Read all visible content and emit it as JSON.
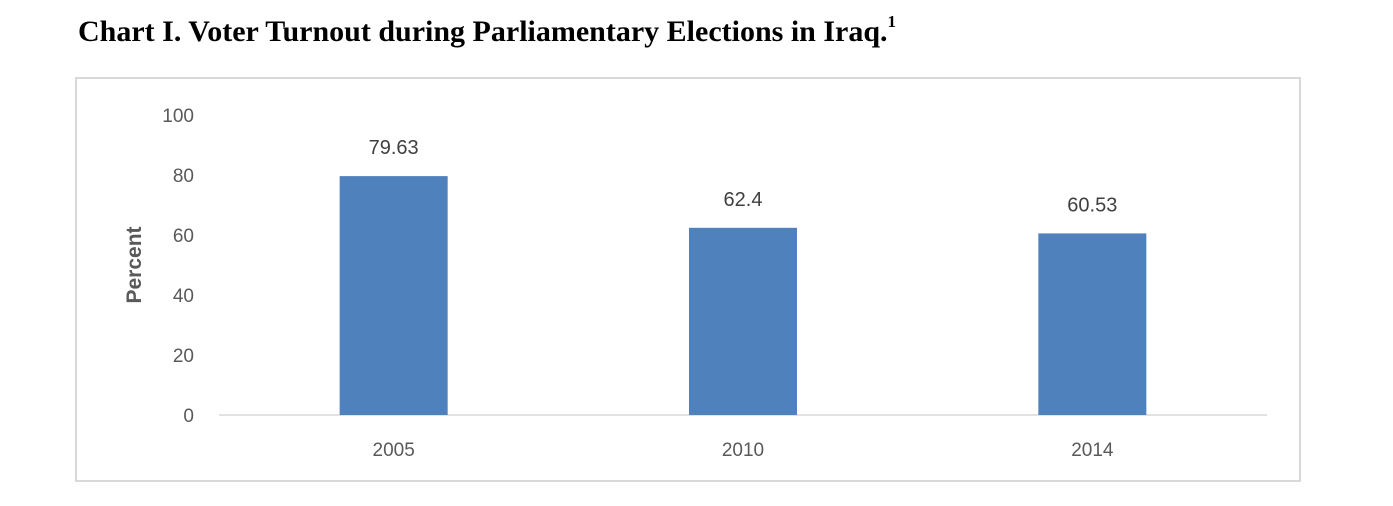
{
  "title": {
    "text": "Chart I. Voter Turnout during Parliamentary Elections in Iraq.",
    "footnote": "1"
  },
  "chart_data": {
    "type": "bar",
    "title": "Chart I. Voter Turnout during Parliamentary Elections in Iraq.",
    "categories": [
      "2005",
      "2010",
      "2014"
    ],
    "values": [
      79.63,
      62.4,
      60.53
    ],
    "data_labels": [
      "79.63",
      "62.4",
      "60.53"
    ],
    "xlabel": "",
    "ylabel": "Percent",
    "ylim": [
      0,
      100
    ],
    "yticks": [
      0,
      20,
      40,
      60,
      80,
      100
    ],
    "grid": false,
    "bar_color": "#4f81bd"
  }
}
